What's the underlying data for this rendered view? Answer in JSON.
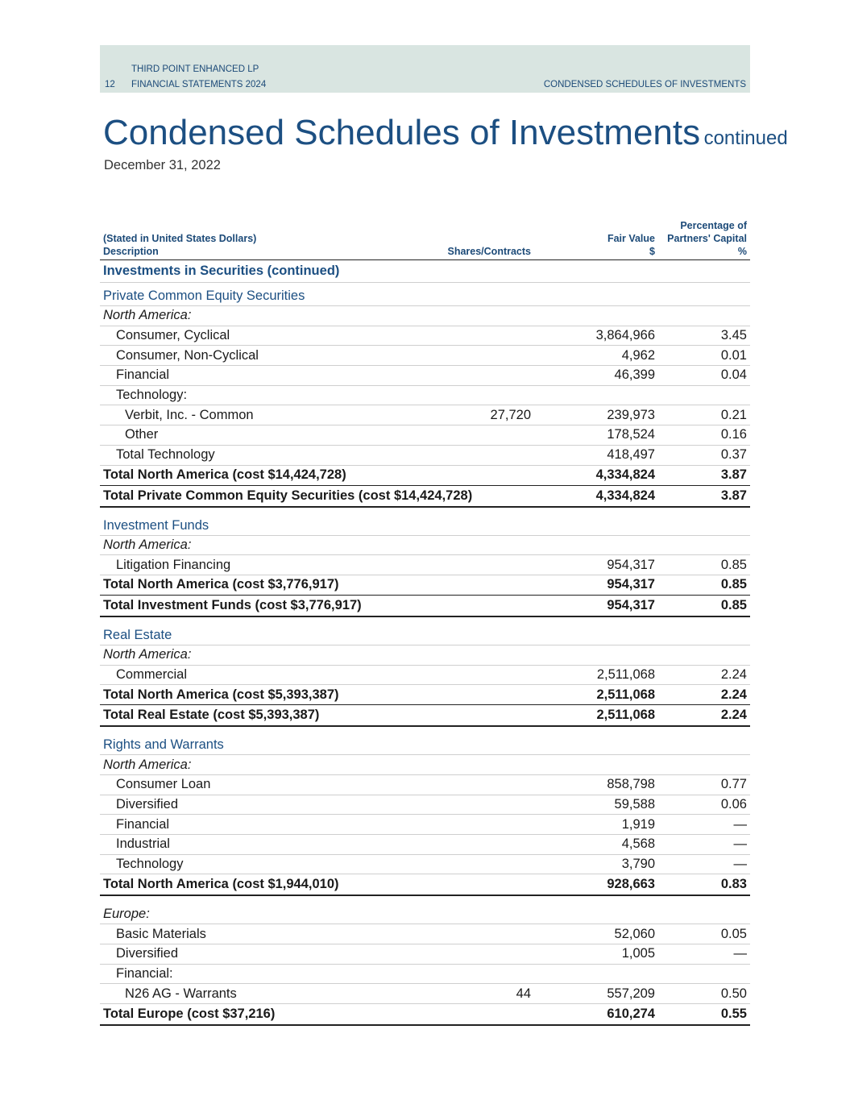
{
  "header": {
    "fund": "THIRD POINT ENHANCED LP",
    "page": "12",
    "publication": "FINANCIAL STATEMENTS 2024",
    "section": "CONDENSED SCHEDULES OF INVESTMENTS"
  },
  "title": {
    "main": "Condensed Schedules of Investments",
    "suffix": "continued",
    "date": "December 31, 2022"
  },
  "table": {
    "columns": {
      "stated": "(Stated in United States Dollars)",
      "description": "Description",
      "shares": "Shares/Contracts",
      "fair_value": "Fair Value",
      "fair_value_unit": "$",
      "percentage": [
        "Percentage of",
        "Partners' Capital"
      ],
      "percentage_unit": "%"
    },
    "rows": [
      [
        "Investments in Securities (continued)",
        null,
        null,
        null
      ],
      [
        "Private Common Equity Securities",
        null,
        null,
        null
      ],
      [
        "North America:",
        null,
        null,
        null
      ],
      [
        "Consumer, Cyclical",
        null,
        "3,864,966",
        "3.45"
      ],
      [
        "Consumer, Non-Cyclical",
        null,
        "4,962",
        "0.01"
      ],
      [
        "Financial",
        null,
        "46,399",
        "0.04"
      ],
      [
        "Technology:",
        null,
        null,
        null
      ],
      [
        "Verbit, Inc. - Common",
        "27,720",
        "239,973",
        "0.21"
      ],
      [
        "Other",
        null,
        "178,524",
        "0.16"
      ],
      [
        "Total Technology",
        null,
        "418,497",
        "0.37"
      ],
      [
        "Total North America (cost $14,424,728)",
        null,
        "4,334,824",
        "3.87"
      ],
      [
        "Total Private Common Equity Securities (cost $14,424,728)",
        null,
        "4,334,824",
        "3.87"
      ],
      [
        "Investment Funds",
        null,
        null,
        null
      ],
      [
        "North America:",
        null,
        null,
        null
      ],
      [
        "Litigation Financing",
        null,
        "954,317",
        "0.85"
      ],
      [
        "Total North America (cost $3,776,917)",
        null,
        "954,317",
        "0.85"
      ],
      [
        "Total Investment Funds (cost $3,776,917)",
        null,
        "954,317",
        "0.85"
      ],
      [
        "Real Estate",
        null,
        null,
        null
      ],
      [
        "North America:",
        null,
        null,
        null
      ],
      [
        "Commercial",
        null,
        "2,511,068",
        "2.24"
      ],
      [
        "Total North America (cost $5,393,387)",
        null,
        "2,511,068",
        "2.24"
      ],
      [
        "Total Real Estate (cost $5,393,387)",
        null,
        "2,511,068",
        "2.24"
      ],
      [
        "Rights and Warrants",
        null,
        null,
        null
      ],
      [
        "North America:",
        null,
        null,
        null
      ],
      [
        "Consumer Loan",
        null,
        "858,798",
        "0.77"
      ],
      [
        "Diversified",
        null,
        "59,588",
        "0.06"
      ],
      [
        "Financial",
        null,
        "1,919",
        "—"
      ],
      [
        "Industrial",
        null,
        "4,568",
        "—"
      ],
      [
        "Technology",
        null,
        "3,790",
        "—"
      ],
      [
        "Total North America (cost $1,944,010)",
        null,
        "928,663",
        "0.83"
      ],
      [
        "Europe:",
        null,
        null,
        null
      ],
      [
        "Basic Materials",
        null,
        "52,060",
        "0.05"
      ],
      [
        "Diversified",
        null,
        "1,005",
        "—"
      ],
      [
        "Financial:",
        null,
        null,
        null
      ],
      [
        "N26 AG - Warrants",
        "44",
        "557,209",
        "0.50"
      ],
      [
        "Total Europe (cost $37,216)",
        null,
        "610,274",
        "0.55"
      ]
    ]
  }
}
